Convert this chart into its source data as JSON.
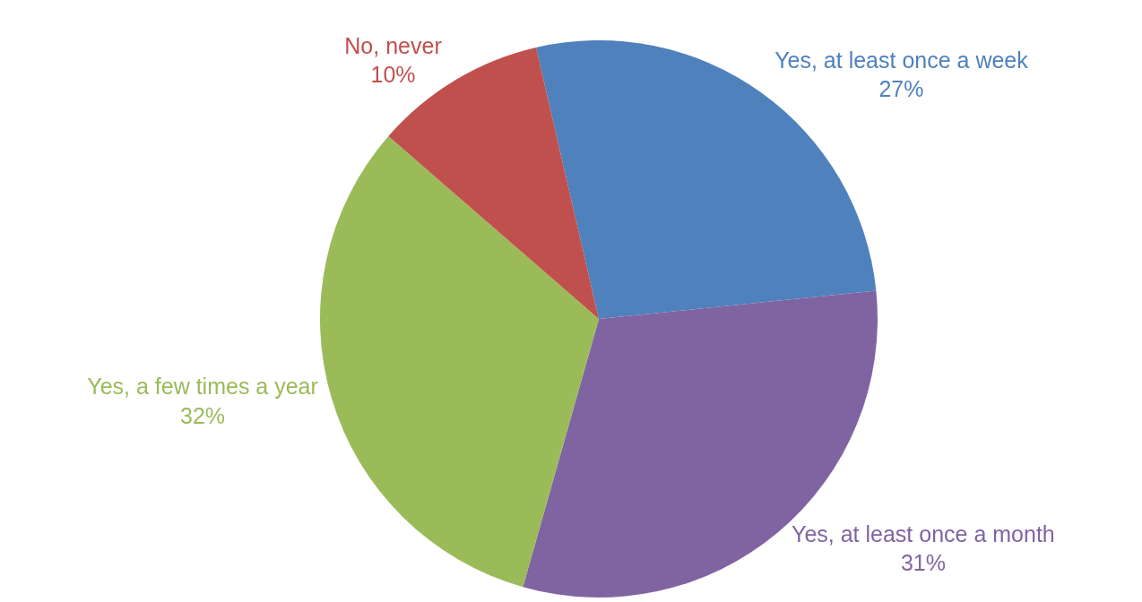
{
  "chart_data": {
    "type": "pie",
    "categories": [
      "Yes, at least once a week",
      "Yes, at least once a month",
      "Yes, a few times a year",
      "No, never"
    ],
    "values": [
      27,
      31,
      32,
      10
    ],
    "value_labels": [
      "27%",
      "31%",
      "32%",
      "10%"
    ],
    "colors": [
      "#4f81bd",
      "#8064a2",
      "#9bbb59",
      "#c0504d"
    ],
    "legend": false
  }
}
